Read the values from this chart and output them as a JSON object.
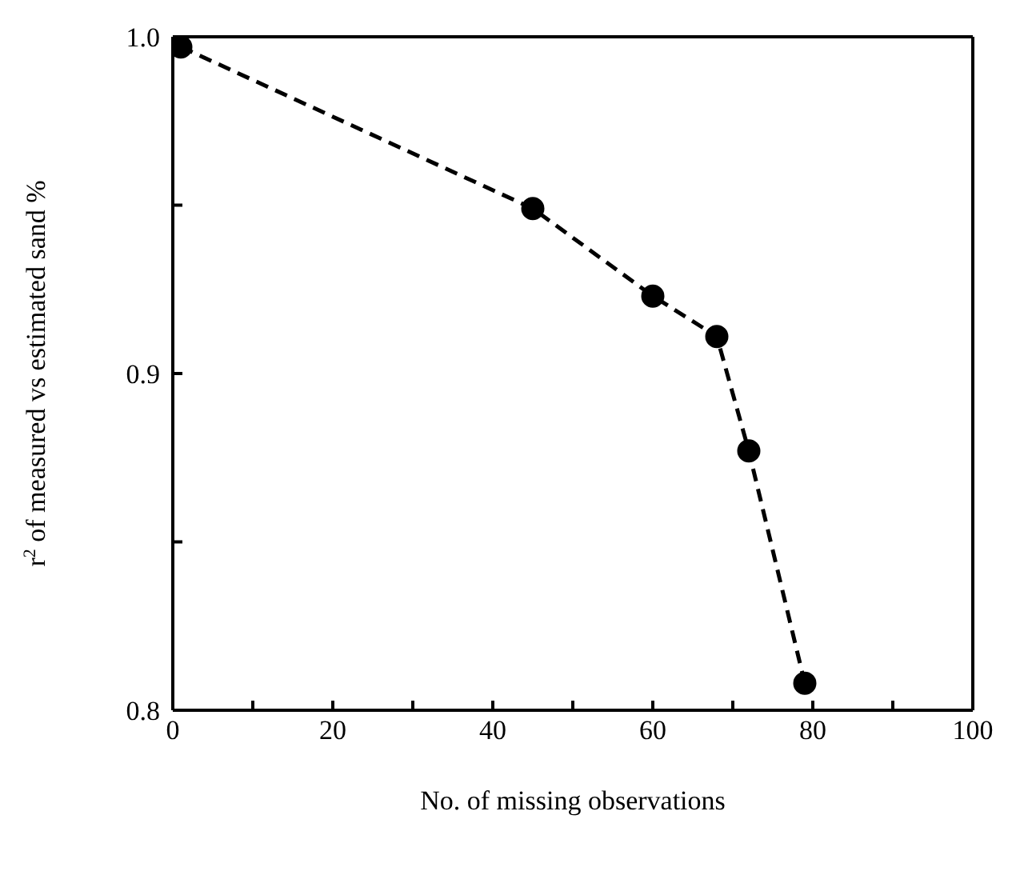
{
  "chart_data": {
    "type": "line",
    "xlabel": "No. of missing observations",
    "ylabel": "r$^{2}$ of measured vs estimated sand %",
    "x": [
      1,
      45,
      60,
      68,
      72,
      79
    ],
    "series": [
      {
        "color": "#000000",
        "values": [
          0.997,
          0.949,
          0.923,
          0.911,
          0.877,
          0.808
        ]
      }
    ],
    "xlim": [
      0,
      100
    ],
    "xticks": [
      0,
      {
        "value": 10,
        "label": null
      },
      20,
      {
        "value": 30,
        "label": null
      },
      40,
      {
        "value": 50,
        "label": null
      },
      60,
      {
        "value": 70,
        "label": null
      },
      80,
      {
        "value": 90,
        "label": null
      },
      100
    ],
    "ylim": [
      0.8,
      1.0
    ],
    "yticks": [
      0.8,
      {
        "value": 0.85,
        "label": null
      },
      0.9,
      {
        "value": 0.95,
        "label": null
      },
      {
        "value": 1.0,
        "label": "1.0"
      }
    ],
    "grid": false,
    "legend": false,
    "marker": "circle",
    "line_style": "dashed"
  }
}
